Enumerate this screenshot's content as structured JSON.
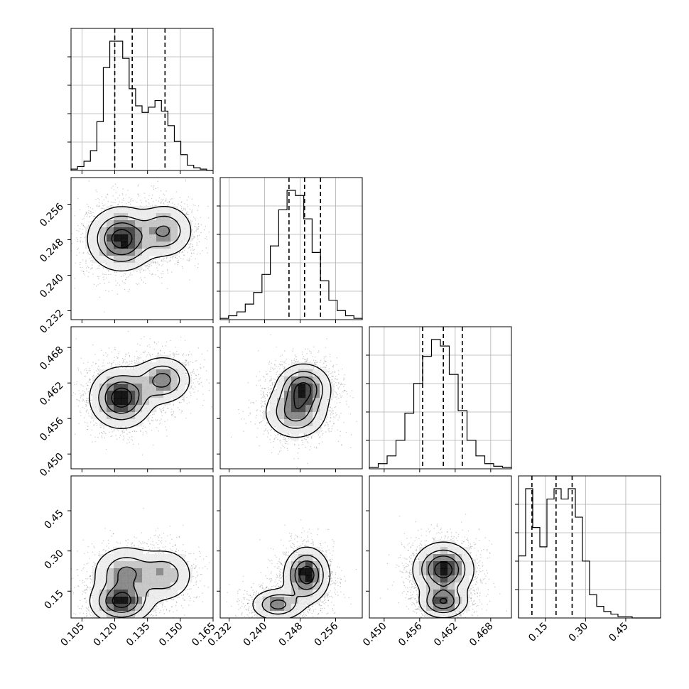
{
  "chart_data": {
    "type": "corner",
    "parameters": [
      {
        "range": [
          0.1,
          0.165
        ],
        "ticks": [
          0.105,
          0.12,
          0.135,
          0.15,
          0.165
        ],
        "tick_labels": [
          "0.105",
          "0.120",
          "0.135",
          "0.150",
          "0.165"
        ],
        "quantiles": [
          0.12,
          0.128,
          0.143
        ]
      },
      {
        "range": [
          0.23,
          0.262
        ],
        "ticks": [
          0.232,
          0.24,
          0.248,
          0.256
        ],
        "tick_labels": [
          "0.232",
          "0.240",
          "0.248",
          "0.256"
        ],
        "quantiles": [
          0.2455,
          0.249,
          0.2526
        ]
      },
      {
        "range": [
          0.4475,
          0.4715
        ],
        "ticks": [
          0.45,
          0.456,
          0.462,
          0.468
        ],
        "tick_labels": [
          "0.450",
          "0.456",
          "0.462",
          "0.468"
        ],
        "quantiles": [
          0.4565,
          0.46,
          0.4632
        ]
      },
      {
        "range": [
          0.05,
          0.58
        ],
        "ticks": [
          0.15,
          0.3,
          0.45
        ],
        "tick_labels": [
          "0.15",
          "0.30",
          "0.45"
        ],
        "quantiles": [
          0.1,
          0.19,
          0.25
        ]
      }
    ],
    "histograms": [
      [
        1,
        3,
        7,
        15,
        37,
        78,
        98,
        98,
        85,
        62,
        49,
        44,
        48,
        53,
        45,
        34,
        22,
        12,
        4,
        2,
        1,
        0
      ],
      [
        1,
        3,
        6,
        12,
        21,
        35,
        57,
        85,
        100,
        96,
        78,
        52,
        30,
        15,
        7,
        3,
        1
      ],
      [
        1,
        4,
        10,
        22,
        43,
        66,
        87,
        100,
        95,
        73,
        45,
        22,
        10,
        4,
        2,
        1
      ],
      [
        48,
        100,
        70,
        55,
        92,
        100,
        92,
        100,
        78,
        44,
        18,
        9,
        5,
        3,
        1,
        1,
        0,
        0,
        0,
        0
      ]
    ],
    "pairs": [
      {
        "x": 0,
        "y": 1,
        "modes": [
          {
            "mx": 0.123,
            "my": 0.2482,
            "sx": 0.0075,
            "sy": 0.0035,
            "w": 0.62
          },
          {
            "mx": 0.143,
            "my": 0.25,
            "sx": 0.0065,
            "sy": 0.003,
            "w": 0.38
          }
        ]
      },
      {
        "x": 0,
        "y": 2,
        "modes": [
          {
            "mx": 0.123,
            "my": 0.4595,
            "sx": 0.007,
            "sy": 0.0025,
            "w": 0.6
          },
          {
            "mx": 0.142,
            "my": 0.4625,
            "sx": 0.0065,
            "sy": 0.002,
            "w": 0.4
          }
        ]
      },
      {
        "x": 1,
        "y": 2,
        "modes": [
          {
            "mx": 0.2488,
            "my": 0.4612,
            "sx": 0.003,
            "sy": 0.002,
            "w": 0.55
          },
          {
            "mx": 0.247,
            "my": 0.457,
            "sx": 0.0035,
            "sy": 0.0022,
            "w": 0.45
          }
        ]
      },
      {
        "x": 0,
        "y": 3,
        "modes": [
          {
            "mx": 0.123,
            "my": 0.11,
            "sx": 0.007,
            "sy": 0.04,
            "w": 0.45
          },
          {
            "mx": 0.125,
            "my": 0.22,
            "sx": 0.0075,
            "sy": 0.05,
            "w": 0.3
          },
          {
            "mx": 0.143,
            "my": 0.21,
            "sx": 0.0065,
            "sy": 0.05,
            "w": 0.25
          }
        ]
      },
      {
        "x": 1,
        "y": 3,
        "modes": [
          {
            "mx": 0.2495,
            "my": 0.21,
            "sx": 0.0025,
            "sy": 0.05,
            "w": 0.6
          },
          {
            "mx": 0.243,
            "my": 0.1,
            "sx": 0.003,
            "sy": 0.03,
            "w": 0.4
          }
        ]
      },
      {
        "x": 2,
        "y": 3,
        "modes": [
          {
            "mx": 0.46,
            "my": 0.23,
            "sx": 0.0025,
            "sy": 0.05,
            "w": 0.55
          },
          {
            "mx": 0.46,
            "my": 0.11,
            "sx": 0.002,
            "sy": 0.03,
            "w": 0.45
          }
        ]
      }
    ]
  }
}
